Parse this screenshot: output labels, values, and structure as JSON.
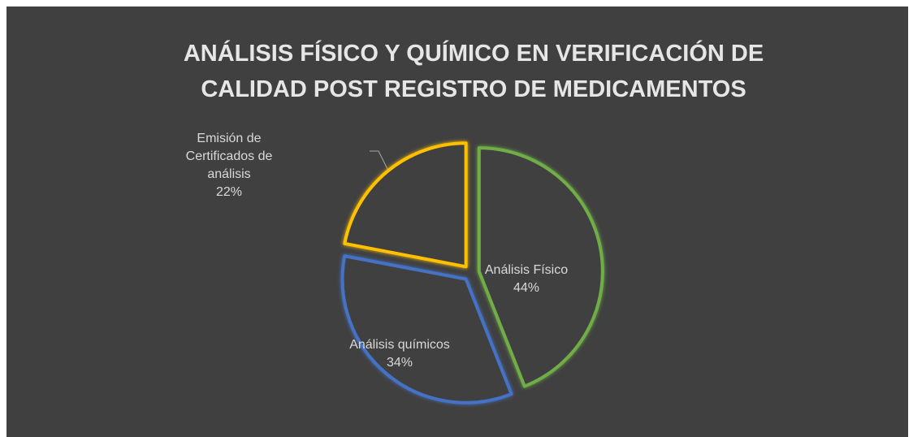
{
  "chart_data": {
    "type": "pie",
    "title": "ANÁLISIS FÍSICO Y QUÍMICO EN VERIFICACIÓN DE CALIDAD POST REGISTRO DE MEDICAMENTOS",
    "categories": [
      "Análisis Físico",
      "Análisis químicos",
      "Emisión de Certificados de análisis"
    ],
    "values": [
      44,
      34,
      22
    ],
    "value_labels": [
      "44%",
      "34%",
      "22%"
    ],
    "colors": [
      "#70ad47",
      "#4472c4",
      "#ffc000"
    ]
  }
}
